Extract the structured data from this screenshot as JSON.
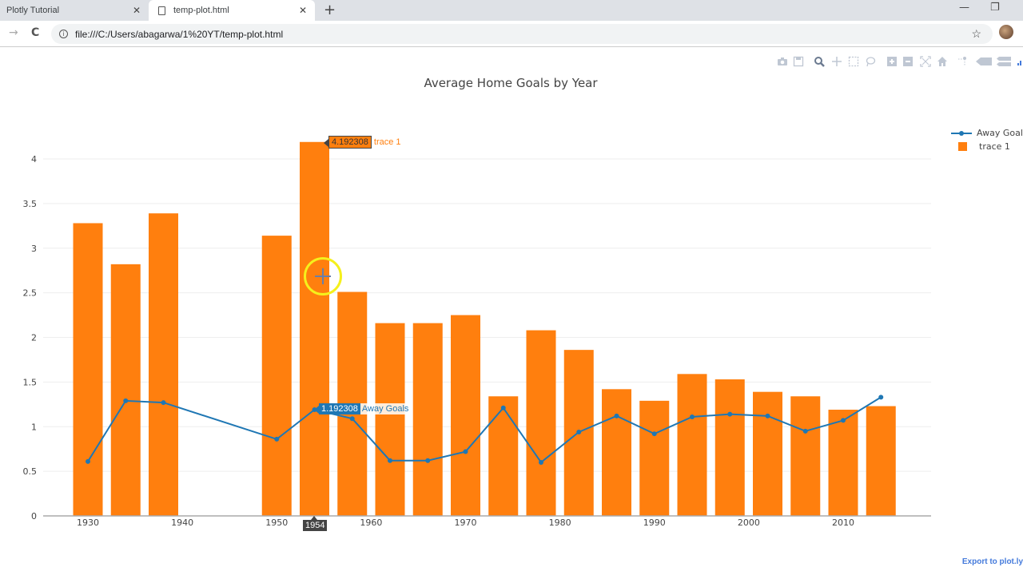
{
  "browser": {
    "tabs": [
      {
        "label": "Plotly Tutorial",
        "active": false
      },
      {
        "label": "temp-plot.html",
        "active": true
      }
    ],
    "new_tab_symbol": "+",
    "close_symbol": "✕",
    "url": "file:///C:/Users/abagarwa/1%20YT/temp-plot.html",
    "back_symbol": "→",
    "reload_symbol": "C",
    "bookmark_symbol": "☆",
    "minimize_symbol": "—",
    "restore_symbol": "❐"
  },
  "modebar": {
    "icons": [
      "camera-icon",
      "save-icon",
      "zoom-icon",
      "pan-icon",
      "box-select-icon",
      "lasso-select-icon",
      "zoom-in-icon",
      "zoom-out-icon",
      "autoscale-icon",
      "reset-axes-icon",
      "spike-lines-icon",
      "hover-closest-icon",
      "hover-compare-icon",
      "plotly-logo-icon"
    ]
  },
  "export_link": "Export to plot.ly",
  "colors": {
    "bar": "#ff7f0e",
    "line": "#1f77b4",
    "grid": "#eeeeee",
    "axis": "#444444",
    "tooltip_x_bg": "#444444"
  },
  "hover": {
    "bar_value": "4.192308",
    "bar_name": "trace 1",
    "line_value": "1.192308",
    "line_name": "Away Goals",
    "x_value": "1954"
  },
  "chart_data": {
    "type": "bar",
    "title": "Average Home Goals by Year",
    "xlabel": "",
    "ylabel": "",
    "ylim": [
      0,
      4.3
    ],
    "xlim": [
      1924,
      2020
    ],
    "grid": true,
    "legend_position": "top-right",
    "x_ticks": [
      1930,
      1940,
      1950,
      1960,
      1970,
      1980,
      1990,
      2000,
      2010
    ],
    "y_ticks": [
      0,
      0.5,
      1,
      1.5,
      2,
      2.5,
      3,
      3.5,
      4
    ],
    "y_tick_labels": [
      "0",
      "0.5",
      "1",
      "1.5",
      "2",
      "2.5",
      "3",
      "3.5",
      "4"
    ],
    "categories": [
      1930,
      1934,
      1938,
      1950,
      1954,
      1958,
      1962,
      1966,
      1970,
      1974,
      1978,
      1982,
      1986,
      1990,
      1994,
      1998,
      2002,
      2006,
      2010,
      2014
    ],
    "series": [
      {
        "name": "trace 1",
        "type": "bar",
        "color": "#ff7f0e",
        "values": [
          3.28,
          2.82,
          3.39,
          3.14,
          4.19,
          2.51,
          2.16,
          2.16,
          2.25,
          1.34,
          2.08,
          1.86,
          1.42,
          1.29,
          1.59,
          1.53,
          1.39,
          1.34,
          1.19,
          1.23
        ]
      },
      {
        "name": "Away Goals",
        "type": "line",
        "color": "#1f77b4",
        "values": [
          0.61,
          1.29,
          1.27,
          0.86,
          1.19,
          1.09,
          0.62,
          0.62,
          0.72,
          1.21,
          0.6,
          0.94,
          1.12,
          0.92,
          1.11,
          1.14,
          1.12,
          0.95,
          1.07,
          1.33
        ]
      }
    ]
  }
}
